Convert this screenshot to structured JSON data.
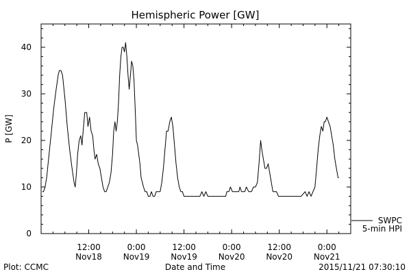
{
  "chart_data": {
    "type": "line",
    "title": "Hemispheric Power [GW]",
    "ylabel": "P [GW]",
    "xlabel": "Date and Time",
    "ylim": [
      0,
      45
    ],
    "xlim": [
      0,
      78
    ],
    "grid": false,
    "yticks": [
      0,
      10,
      20,
      30,
      40
    ],
    "xticks": [
      {
        "hour": 12,
        "line1": "12:00",
        "line2": "Nov18"
      },
      {
        "hour": 24,
        "line1": "0:00",
        "line2": "Nov19"
      },
      {
        "hour": 36,
        "line1": "12:00",
        "line2": "Nov19"
      },
      {
        "hour": 48,
        "line1": "0:00",
        "line2": "Nov20"
      },
      {
        "hour": 60,
        "line1": "12:00",
        "line2": "Nov20"
      },
      {
        "hour": 72,
        "line1": "0:00",
        "line2": "Nov21"
      }
    ],
    "series": [
      {
        "name": "SWPC",
        "label2": "5-min HPI",
        "color": "#000000",
        "points": [
          [
            0.3,
            9
          ],
          [
            0.6,
            9
          ],
          [
            1.0,
            10
          ],
          [
            1.4,
            12
          ],
          [
            2.0,
            17
          ],
          [
            2.6,
            22
          ],
          [
            3.2,
            27
          ],
          [
            3.8,
            31
          ],
          [
            4.3,
            34
          ],
          [
            4.6,
            35
          ],
          [
            5.0,
            35
          ],
          [
            5.4,
            34
          ],
          [
            6.0,
            29
          ],
          [
            6.6,
            23
          ],
          [
            7.2,
            18
          ],
          [
            7.8,
            14
          ],
          [
            8.3,
            11
          ],
          [
            8.6,
            10
          ],
          [
            8.9,
            13
          ],
          [
            9.2,
            17
          ],
          [
            9.6,
            20
          ],
          [
            10.0,
            21
          ],
          [
            10.3,
            19
          ],
          [
            10.6,
            22
          ],
          [
            11.0,
            26
          ],
          [
            11.5,
            26
          ],
          [
            11.8,
            23
          ],
          [
            12.2,
            25
          ],
          [
            12.6,
            22
          ],
          [
            13.0,
            21
          ],
          [
            13.3,
            18
          ],
          [
            13.6,
            16
          ],
          [
            14.0,
            17
          ],
          [
            14.4,
            15
          ],
          [
            14.8,
            14
          ],
          [
            15.2,
            12
          ],
          [
            15.6,
            10
          ],
          [
            16.0,
            9
          ],
          [
            16.4,
            9
          ],
          [
            16.8,
            10
          ],
          [
            17.2,
            11
          ],
          [
            17.6,
            13
          ],
          [
            18.0,
            17
          ],
          [
            18.3,
            22
          ],
          [
            18.6,
            24
          ],
          [
            18.9,
            22
          ],
          [
            19.2,
            24
          ],
          [
            19.5,
            28
          ],
          [
            19.8,
            34
          ],
          [
            20.1,
            38
          ],
          [
            20.4,
            40
          ],
          [
            20.7,
            40
          ],
          [
            21.0,
            39
          ],
          [
            21.3,
            41
          ],
          [
            21.6,
            38
          ],
          [
            21.9,
            34
          ],
          [
            22.2,
            31
          ],
          [
            22.5,
            34
          ],
          [
            22.8,
            37
          ],
          [
            23.1,
            36
          ],
          [
            23.4,
            33
          ],
          [
            23.7,
            27
          ],
          [
            24.0,
            20
          ],
          [
            24.3,
            19
          ],
          [
            24.6,
            17
          ],
          [
            24.9,
            15
          ],
          [
            25.2,
            12
          ],
          [
            25.5,
            11
          ],
          [
            25.8,
            10
          ],
          [
            26.2,
            9
          ],
          [
            26.6,
            9
          ],
          [
            27.0,
            8
          ],
          [
            27.4,
            8
          ],
          [
            27.8,
            9
          ],
          [
            28.2,
            8
          ],
          [
            28.6,
            8
          ],
          [
            29.0,
            9
          ],
          [
            29.5,
            9
          ],
          [
            30.0,
            9
          ],
          [
            30.4,
            11
          ],
          [
            30.8,
            14
          ],
          [
            31.2,
            18
          ],
          [
            31.6,
            22
          ],
          [
            32.0,
            22
          ],
          [
            32.4,
            24
          ],
          [
            32.8,
            25
          ],
          [
            33.2,
            23
          ],
          [
            33.6,
            19
          ],
          [
            34.0,
            15
          ],
          [
            34.4,
            12
          ],
          [
            34.8,
            10
          ],
          [
            35.2,
            9
          ],
          [
            35.6,
            9
          ],
          [
            36.0,
            8
          ],
          [
            37.0,
            8
          ],
          [
            38.0,
            8
          ],
          [
            39.0,
            8
          ],
          [
            40.0,
            8
          ],
          [
            40.5,
            9
          ],
          [
            41.0,
            8
          ],
          [
            41.5,
            9
          ],
          [
            42.0,
            8
          ],
          [
            43.0,
            8
          ],
          [
            44.0,
            8
          ],
          [
            45.0,
            8
          ],
          [
            46.0,
            8
          ],
          [
            46.5,
            8
          ],
          [
            46.8,
            9
          ],
          [
            47.3,
            9
          ],
          [
            47.7,
            10
          ],
          [
            48.2,
            9
          ],
          [
            49.0,
            9
          ],
          [
            49.8,
            9
          ],
          [
            50.1,
            10
          ],
          [
            50.5,
            9
          ],
          [
            51.3,
            9
          ],
          [
            51.7,
            10
          ],
          [
            52.3,
            9
          ],
          [
            53.0,
            9
          ],
          [
            53.5,
            10
          ],
          [
            54.0,
            10
          ],
          [
            54.5,
            11
          ],
          [
            54.9,
            15
          ],
          [
            55.3,
            20
          ],
          [
            55.6,
            18
          ],
          [
            56.0,
            16
          ],
          [
            56.4,
            14
          ],
          [
            56.8,
            14
          ],
          [
            57.2,
            15
          ],
          [
            57.6,
            13
          ],
          [
            58.0,
            11
          ],
          [
            58.4,
            9
          ],
          [
            58.8,
            9
          ],
          [
            59.3,
            9
          ],
          [
            59.8,
            8
          ],
          [
            61.0,
            8
          ],
          [
            62.5,
            8
          ],
          [
            64.0,
            8
          ],
          [
            65.5,
            8
          ],
          [
            66.5,
            9
          ],
          [
            67.0,
            8
          ],
          [
            67.5,
            9
          ],
          [
            68.0,
            8
          ],
          [
            68.5,
            9
          ],
          [
            69.0,
            10
          ],
          [
            69.4,
            14
          ],
          [
            69.8,
            18
          ],
          [
            70.2,
            21
          ],
          [
            70.6,
            23
          ],
          [
            71.0,
            22
          ],
          [
            71.3,
            24
          ],
          [
            71.6,
            24
          ],
          [
            72.0,
            25
          ],
          [
            72.4,
            24
          ],
          [
            72.8,
            23
          ],
          [
            73.2,
            21
          ],
          [
            73.6,
            19
          ],
          [
            74.0,
            16
          ],
          [
            74.4,
            14
          ],
          [
            74.8,
            12
          ],
          [
            75.0,
            12
          ]
        ]
      }
    ],
    "footer": {
      "left": "Plot: CCMC",
      "right": "2015/11/21 07:30:10"
    }
  }
}
